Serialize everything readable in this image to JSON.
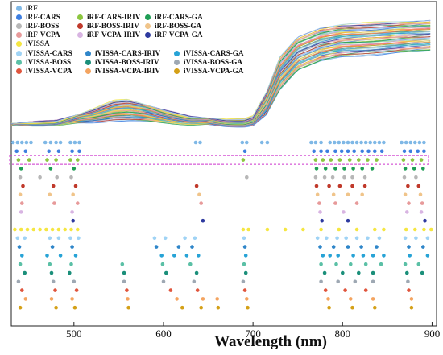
{
  "chart_data": {
    "type": "line",
    "xlabel": "Wavelength (nm)",
    "xlim": [
      430,
      905
    ],
    "xticks": [
      500,
      600,
      700,
      800,
      900
    ],
    "x_tick_labels": [
      "500",
      "600",
      "700",
      "800",
      "900"
    ],
    "grid": false,
    "legend_position": "top-left",
    "legend": [
      {
        "name": "iRF",
        "color": "#7fb8e6"
      },
      {
        "name": "iRF-CARS",
        "color": "#3d7ee0"
      },
      {
        "name": "iRF-CARS-IRIV",
        "color": "#8cc63f"
      },
      {
        "name": "iRF-CARS-GA",
        "color": "#1f9d55"
      },
      {
        "name": "iRF-BOSS",
        "color": "#b7b7b7"
      },
      {
        "name": "iRF-BOSS-IRIV",
        "color": "#c0392b"
      },
      {
        "name": "iRF-BOSS-GA",
        "color": "#f0c48a"
      },
      {
        "name": "iRF-VCPA",
        "color": "#e79a9a"
      },
      {
        "name": "iRF-VCPA-IRIV",
        "color": "#d8b4e2"
      },
      {
        "name": "iRF-VCPA-GA",
        "color": "#2e3a9f"
      },
      {
        "name": "iVISSA",
        "color": "#f5e642"
      },
      {
        "name": "iVISSA-CARS",
        "color": "#9fd3f5"
      },
      {
        "name": "iVISSA-CARS-IRIV",
        "color": "#2f86c9"
      },
      {
        "name": "iVISSA-CARS-GA",
        "color": "#27a3d6"
      },
      {
        "name": "iVISSA-BOSS",
        "color": "#5bc0a6"
      },
      {
        "name": "iVISSA-BOSS-IRIV",
        "color": "#1b8f7a"
      },
      {
        "name": "iVISSA-BOSS-GA",
        "color": "#9ea8b3"
      },
      {
        "name": "iVISSA-VCPA",
        "color": "#e0553d"
      },
      {
        "name": "iVISSA-VCPA-IRIV",
        "color": "#f4a460"
      },
      {
        "name": "iVISSA-VCPA-GA",
        "color": "#d4a017"
      }
    ],
    "spectra": {
      "description_type": "reflectance spectra bundle",
      "x": [
        430,
        480,
        520,
        545,
        560,
        580,
        600,
        630,
        650,
        670,
        690,
        700,
        715,
        730,
        750,
        775,
        800,
        850,
        900
      ],
      "upper_envelope": [
        0.02,
        0.04,
        0.14,
        0.22,
        0.23,
        0.19,
        0.14,
        0.08,
        0.07,
        0.05,
        0.05,
        0.08,
        0.3,
        0.62,
        0.8,
        0.88,
        0.91,
        0.93,
        0.95
      ],
      "lower_envelope": [
        0.0,
        0.01,
        0.03,
        0.05,
        0.05,
        0.04,
        0.03,
        0.01,
        0.01,
        0.0,
        0.0,
        0.01,
        0.1,
        0.32,
        0.5,
        0.58,
        0.62,
        0.65,
        0.68
      ],
      "line_count": 60
    },
    "selected_wavelengths": [
      {
        "method": "iRF",
        "x": [
          432,
          437,
          442,
          447,
          452,
          468,
          474,
          480,
          485,
          496,
          501,
          506,
          636,
          641,
          688,
          693,
          710,
          716,
          765,
          770,
          776,
          786,
          791,
          796,
          801,
          806,
          811,
          816,
          821,
          826,
          831,
          836,
          841,
          846,
          866,
          871,
          876,
          881,
          886,
          891
        ]
      },
      {
        "method": "iRF-CARS",
        "x": [
          436,
          446,
          472,
          483,
          498,
          506,
          691,
          768,
          776,
          783,
          792,
          799,
          806,
          813,
          822,
          829,
          836,
          844,
          869,
          876,
          884,
          891
        ]
      },
      {
        "method": "iRF-CARS-IRIV",
        "x": [
          438,
          450,
          470,
          480,
          496,
          504,
          689,
          770,
          778,
          787,
          797,
          808,
          818,
          828,
          838,
          868,
          878,
          888
        ]
      },
      {
        "method": "iRF-CARS-GA",
        "x": [
          441,
          474,
          500,
          771,
          781,
          792,
          802,
          812,
          822,
          833,
          870,
          880,
          890
        ]
      },
      {
        "method": "iRF-BOSS",
        "x": [
          440,
          462,
          481,
          497,
          693,
          770,
          780,
          789,
          802,
          811,
          825,
          869,
          882
        ]
      },
      {
        "method": "iRF-BOSS-IRIV",
        "x": [
          443,
          477,
          502,
          637,
          771,
          785,
          797,
          811,
          825,
          873,
          885
        ]
      },
      {
        "method": "iRF-BOSS-GA",
        "x": [
          440,
          473,
          499,
          640,
          772,
          790,
          806,
          822,
          870,
          887
        ]
      },
      {
        "method": "iRF-VCPA",
        "x": [
          442,
          478,
          504,
          642,
          774,
          792,
          816,
          874,
          889
        ]
      },
      {
        "method": "iRF-VCPA-IRIV",
        "x": [
          441,
          498,
          775,
          801,
          872,
          888
        ]
      },
      {
        "method": "iRF-VCPA-GA",
        "x": [
          499,
          644,
          777,
          806,
          892
        ]
      },
      {
        "method": "iVISSA",
        "x": [
          434,
          441,
          448,
          455,
          462,
          469,
          476,
          483,
          490,
          497,
          504,
          689,
          695,
          716,
          736,
          756,
          776,
          796,
          816,
          836,
          846,
          871,
          881,
          891,
          899
        ]
      },
      {
        "method": "iVISSA-CARS",
        "x": [
          437,
          445,
          473,
          483,
          496,
          505,
          590,
          602,
          624,
          635,
          690,
          772,
          782,
          794,
          804,
          816,
          828,
          841,
          870,
          882,
          895
        ]
      },
      {
        "method": "iVISSA-CARS-IRIV",
        "x": [
          439,
          476,
          498,
          592,
          617,
          632,
          691,
          775,
          790,
          806,
          821,
          838,
          874,
          890
        ]
      },
      {
        "method": "iVISSA-CARS-GA",
        "x": [
          442,
          470,
          485,
          502,
          598,
          612,
          626,
          639,
          692,
          778,
          786,
          795,
          812,
          823,
          834,
          846,
          875,
          895
        ]
      },
      {
        "method": "iVISSA-BOSS",
        "x": [
          440,
          473,
          497,
          554,
          599,
          630,
          690,
          776,
          793,
          809,
          826,
          843,
          870,
          885
        ]
      },
      {
        "method": "iVISSA-BOSS-IRIV",
        "x": [
          445,
          475,
          495,
          556,
          603,
          637,
          692,
          780,
          800,
          818,
          834,
          872,
          889
        ]
      },
      {
        "method": "iVISSA-BOSS-GA",
        "x": [
          438,
          477,
          500,
          556,
          600,
          634,
          689,
          776,
          795,
          814,
          834,
          873
        ]
      },
      {
        "method": "iVISSA-VCPA",
        "x": [
          442,
          479,
          503,
          559,
          608,
          638,
          691,
          781,
          803,
          826,
          874
        ]
      },
      {
        "method": "iVISSA-VCPA-IRIV",
        "x": [
          446,
          475,
          498,
          560,
          615,
          644,
          660,
          693,
          784,
          809,
          834,
          877
        ]
      },
      {
        "method": "iVISSA-VCPA-GA",
        "x": [
          440,
          480,
          501,
          561,
          621,
          642,
          661,
          694,
          785,
          811,
          836,
          877
        ]
      }
    ],
    "highlight_box": {
      "method": "iRF-CARS-IRIV",
      "style": "dashed",
      "color": "#cc33cc"
    }
  }
}
